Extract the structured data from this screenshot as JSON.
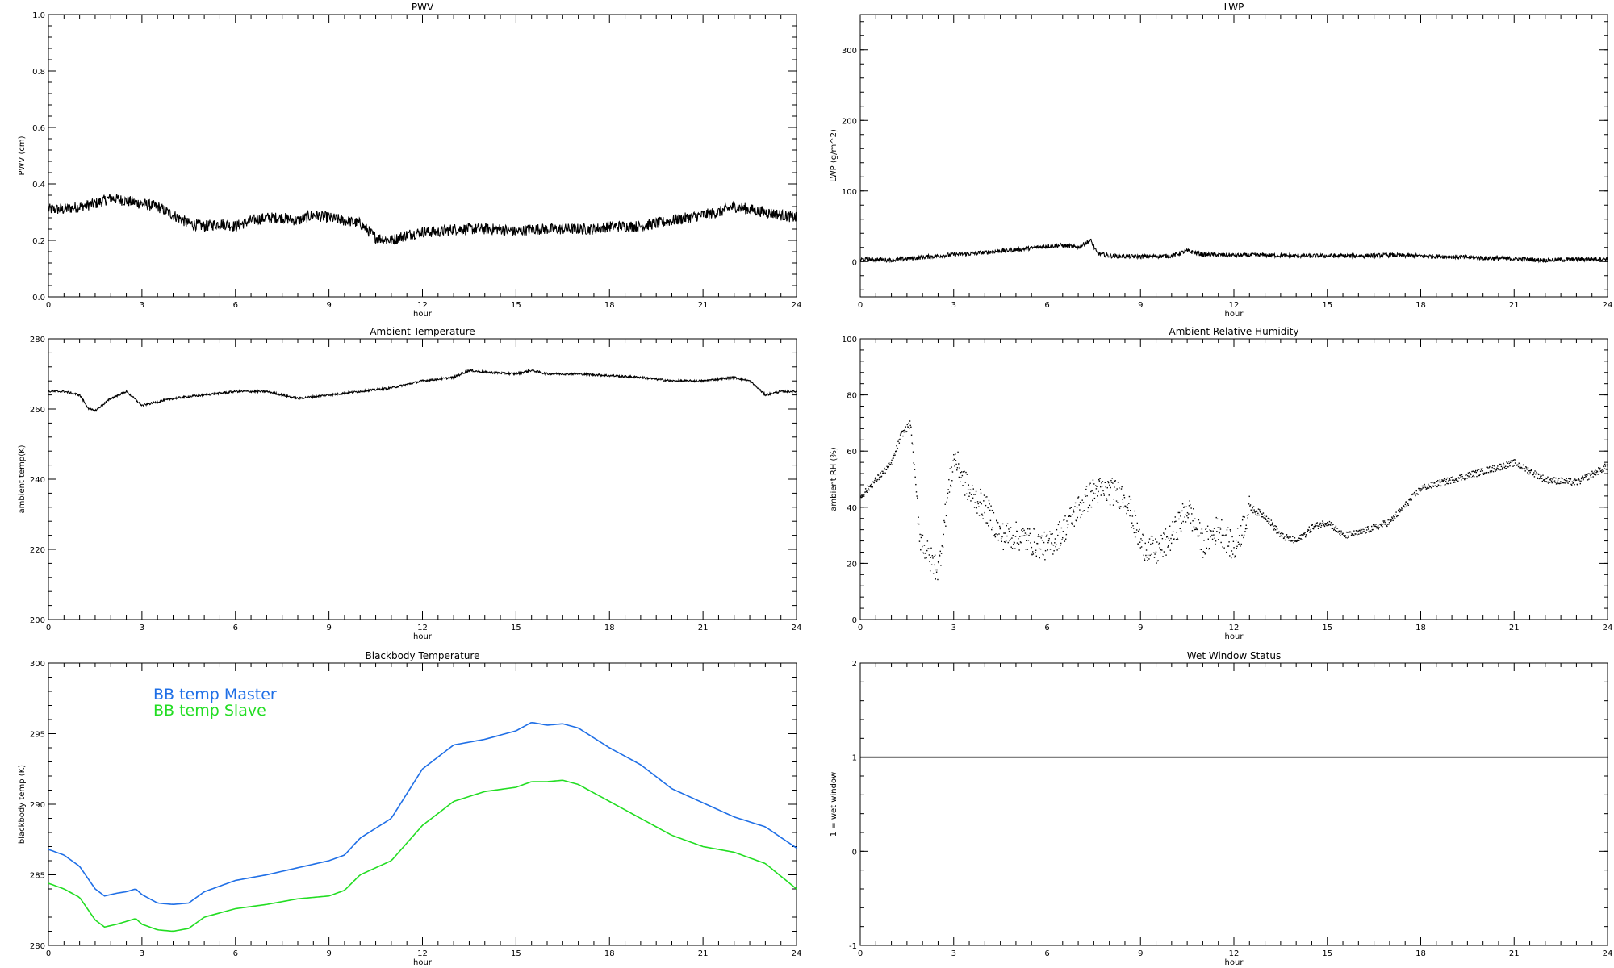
{
  "chart_data": [
    {
      "id": "pwv",
      "type": "line",
      "title": "PWV",
      "xlabel": "hour",
      "ylabel": "PWV (cm)",
      "xlim": [
        0,
        24
      ],
      "ylim": [
        0.0,
        1.0
      ],
      "xticks": [
        0,
        3,
        6,
        9,
        12,
        15,
        18,
        21,
        24
      ],
      "yticks": [
        "0.0",
        "0.2",
        "0.4",
        "0.6",
        "0.8",
        "1.0"
      ],
      "noise": 0.02,
      "series": [
        {
          "color": "#000000",
          "x": [
            0,
            0.5,
            1,
            1.5,
            2,
            2.5,
            3,
            3.5,
            4,
            4.5,
            5,
            5.5,
            6,
            6.5,
            7,
            7.5,
            8,
            8.5,
            9,
            9.5,
            10,
            10.5,
            11,
            11.5,
            12,
            12.5,
            13,
            13.5,
            14,
            14.5,
            15,
            15.5,
            16,
            16.5,
            17,
            17.5,
            18,
            18.5,
            19,
            19.5,
            20,
            20.5,
            21,
            21.5,
            22,
            22.5,
            23,
            23.5,
            24
          ],
          "y": [
            0.31,
            0.31,
            0.32,
            0.33,
            0.35,
            0.34,
            0.33,
            0.32,
            0.29,
            0.26,
            0.25,
            0.26,
            0.25,
            0.27,
            0.28,
            0.28,
            0.27,
            0.29,
            0.28,
            0.27,
            0.26,
            0.21,
            0.2,
            0.22,
            0.23,
            0.23,
            0.24,
            0.24,
            0.24,
            0.24,
            0.23,
            0.24,
            0.24,
            0.24,
            0.24,
            0.24,
            0.25,
            0.25,
            0.25,
            0.26,
            0.27,
            0.28,
            0.29,
            0.3,
            0.32,
            0.31,
            0.3,
            0.29,
            0.28
          ]
        }
      ]
    },
    {
      "id": "lwp",
      "type": "line",
      "title": "LWP",
      "xlabel": "hour",
      "ylabel": "LWP (g/m^2)",
      "xlim": [
        0,
        24
      ],
      "ylim": [
        -50,
        350
      ],
      "xticks": [
        0,
        3,
        6,
        9,
        12,
        15,
        18,
        21,
        24
      ],
      "yticks": [
        "0",
        "100",
        "200",
        "300"
      ],
      "noise": 3,
      "series": [
        {
          "color": "#000000",
          "x": [
            0,
            0.5,
            1,
            1.5,
            2,
            2.5,
            3,
            3.5,
            4,
            4.5,
            5,
            5.5,
            6,
            6.5,
            7,
            7.2,
            7.4,
            7.6,
            8,
            9,
            10,
            10.5,
            11,
            12,
            13,
            14,
            15,
            16,
            17,
            18,
            19,
            20,
            21,
            22,
            23,
            24
          ],
          "y": [
            3,
            3,
            2,
            4,
            6,
            8,
            10,
            11,
            13,
            15,
            17,
            19,
            22,
            23,
            20,
            25,
            30,
            12,
            8,
            7,
            8,
            15,
            10,
            9,
            9,
            8,
            8,
            8,
            9,
            8,
            7,
            5,
            4,
            2,
            3,
            4
          ]
        }
      ]
    },
    {
      "id": "ambient-temp",
      "type": "line",
      "title": "Ambient Temperature",
      "xlabel": "hour",
      "ylabel": "ambient temp(K)",
      "xlim": [
        0,
        24
      ],
      "ylim": [
        200,
        280
      ],
      "xticks": [
        0,
        3,
        6,
        9,
        12,
        15,
        18,
        21,
        24
      ],
      "yticks": [
        "200",
        "220",
        "240",
        "260",
        "280"
      ],
      "noise": 0.3,
      "series": [
        {
          "color": "#000000",
          "x": [
            0,
            0.5,
            1,
            1.3,
            1.5,
            2,
            2.5,
            3,
            3.5,
            4,
            5,
            6,
            7,
            8,
            9,
            10,
            11,
            12,
            13,
            13.5,
            14,
            15,
            15.5,
            16,
            17,
            18,
            19,
            20,
            21,
            22,
            22.5,
            23,
            23.5,
            24
          ],
          "y": [
            265,
            265,
            264,
            260,
            259.5,
            263,
            265,
            261,
            262,
            263,
            264,
            265,
            265,
            263,
            264,
            265,
            266,
            268,
            269,
            271,
            270.5,
            270,
            271,
            270,
            270,
            269.5,
            269,
            268,
            268,
            269,
            268,
            264,
            265,
            265
          ]
        }
      ]
    },
    {
      "id": "ambient-rh",
      "type": "scatter",
      "title": "Ambient Relative Humidity",
      "xlabel": "hour",
      "ylabel": "ambient RH (%)",
      "xlim": [
        0,
        24
      ],
      "ylim": [
        0,
        100
      ],
      "xticks": [
        0,
        3,
        6,
        9,
        12,
        15,
        18,
        21,
        24
      ],
      "yticks": [
        "0",
        "20",
        "40",
        "60",
        "80",
        "100"
      ],
      "noise": 2,
      "series": [
        {
          "color": "#000000",
          "x": [
            0,
            0.5,
            1,
            1.3,
            1.6,
            1.9,
            2.2,
            2.5,
            2.8,
            3,
            3.5,
            4,
            4.5,
            5,
            5.5,
            6,
            6.5,
            7,
            7.5,
            8,
            8.5,
            9,
            9.5,
            10,
            10.5,
            11,
            11.5,
            12,
            12.5,
            13,
            13.5,
            14,
            14.5,
            15,
            15.5,
            16,
            17,
            18,
            19,
            20,
            21,
            22,
            23,
            24
          ],
          "y": [
            44,
            50,
            56,
            66,
            70,
            30,
            22,
            18,
            45,
            58,
            45,
            40,
            30,
            30,
            28,
            26,
            32,
            40,
            46,
            46,
            44,
            27,
            24,
            30,
            40,
            27,
            33,
            25,
            40,
            37,
            30,
            28,
            33,
            35,
            30,
            31,
            35,
            47,
            50,
            53,
            56,
            50,
            49,
            55
          ]
        }
      ]
    },
    {
      "id": "blackbody-temp",
      "type": "line",
      "title": "Blackbody Temperature",
      "xlabel": "hour",
      "ylabel": "blackbody temp (K)",
      "xlim": [
        0,
        24
      ],
      "ylim": [
        280,
        300
      ],
      "xticks": [
        0,
        3,
        6,
        9,
        12,
        15,
        18,
        21,
        24
      ],
      "yticks": [
        "280",
        "285",
        "290",
        "295",
        "300"
      ],
      "noise": 0,
      "legend": {
        "placement": "top-left"
      },
      "series": [
        {
          "name": "BB temp Master",
          "color": "#1f6fe6",
          "x": [
            0,
            0.5,
            1,
            1.5,
            1.8,
            2.2,
            2.5,
            2.8,
            3,
            3.5,
            4,
            4.5,
            5,
            6,
            7,
            8,
            9,
            9.5,
            10,
            11,
            12,
            13,
            14,
            15,
            15.5,
            16,
            16.5,
            17,
            18,
            19,
            20,
            21,
            22,
            23,
            24
          ],
          "y": [
            286.8,
            286.4,
            285.6,
            284.0,
            283.5,
            283.7,
            283.8,
            284.0,
            283.6,
            283.0,
            282.9,
            283.0,
            283.8,
            284.6,
            285.0,
            285.5,
            286.0,
            286.4,
            287.6,
            289.0,
            292.5,
            294.2,
            294.6,
            295.2,
            295.8,
            295.6,
            295.7,
            295.4,
            294.0,
            292.8,
            291.1,
            290.1,
            289.1,
            288.4,
            286.9
          ]
        },
        {
          "name": "BB temp Slave",
          "color": "#22dd22",
          "x": [
            0,
            0.5,
            1,
            1.5,
            1.8,
            2.2,
            2.5,
            2.8,
            3,
            3.5,
            4,
            4.5,
            5,
            6,
            7,
            8,
            9,
            9.5,
            10,
            11,
            12,
            13,
            14,
            15,
            15.5,
            16,
            16.5,
            17,
            18,
            19,
            20,
            21,
            22,
            23,
            24
          ],
          "y": [
            284.4,
            284.0,
            283.4,
            281.8,
            281.3,
            281.5,
            281.7,
            281.9,
            281.5,
            281.1,
            281.0,
            281.2,
            282.0,
            282.6,
            282.9,
            283.3,
            283.5,
            283.9,
            285.0,
            286.0,
            288.5,
            290.2,
            290.9,
            291.2,
            291.6,
            291.6,
            291.7,
            291.4,
            290.2,
            289.0,
            287.8,
            287.0,
            286.6,
            285.8,
            284.0
          ]
        }
      ]
    },
    {
      "id": "wet-window",
      "type": "line",
      "title": "Wet Window Status",
      "xlabel": "hour",
      "ylabel": "1 = wet window",
      "xlim": [
        0,
        24
      ],
      "ylim": [
        -1,
        2
      ],
      "xticks": [
        0,
        3,
        6,
        9,
        12,
        15,
        18,
        21,
        24
      ],
      "yticks": [
        "-1",
        "0",
        "1",
        "2"
      ],
      "noise": 0,
      "series": [
        {
          "color": "#000000",
          "x": [
            0,
            24
          ],
          "y": [
            1,
            1
          ]
        }
      ]
    }
  ]
}
